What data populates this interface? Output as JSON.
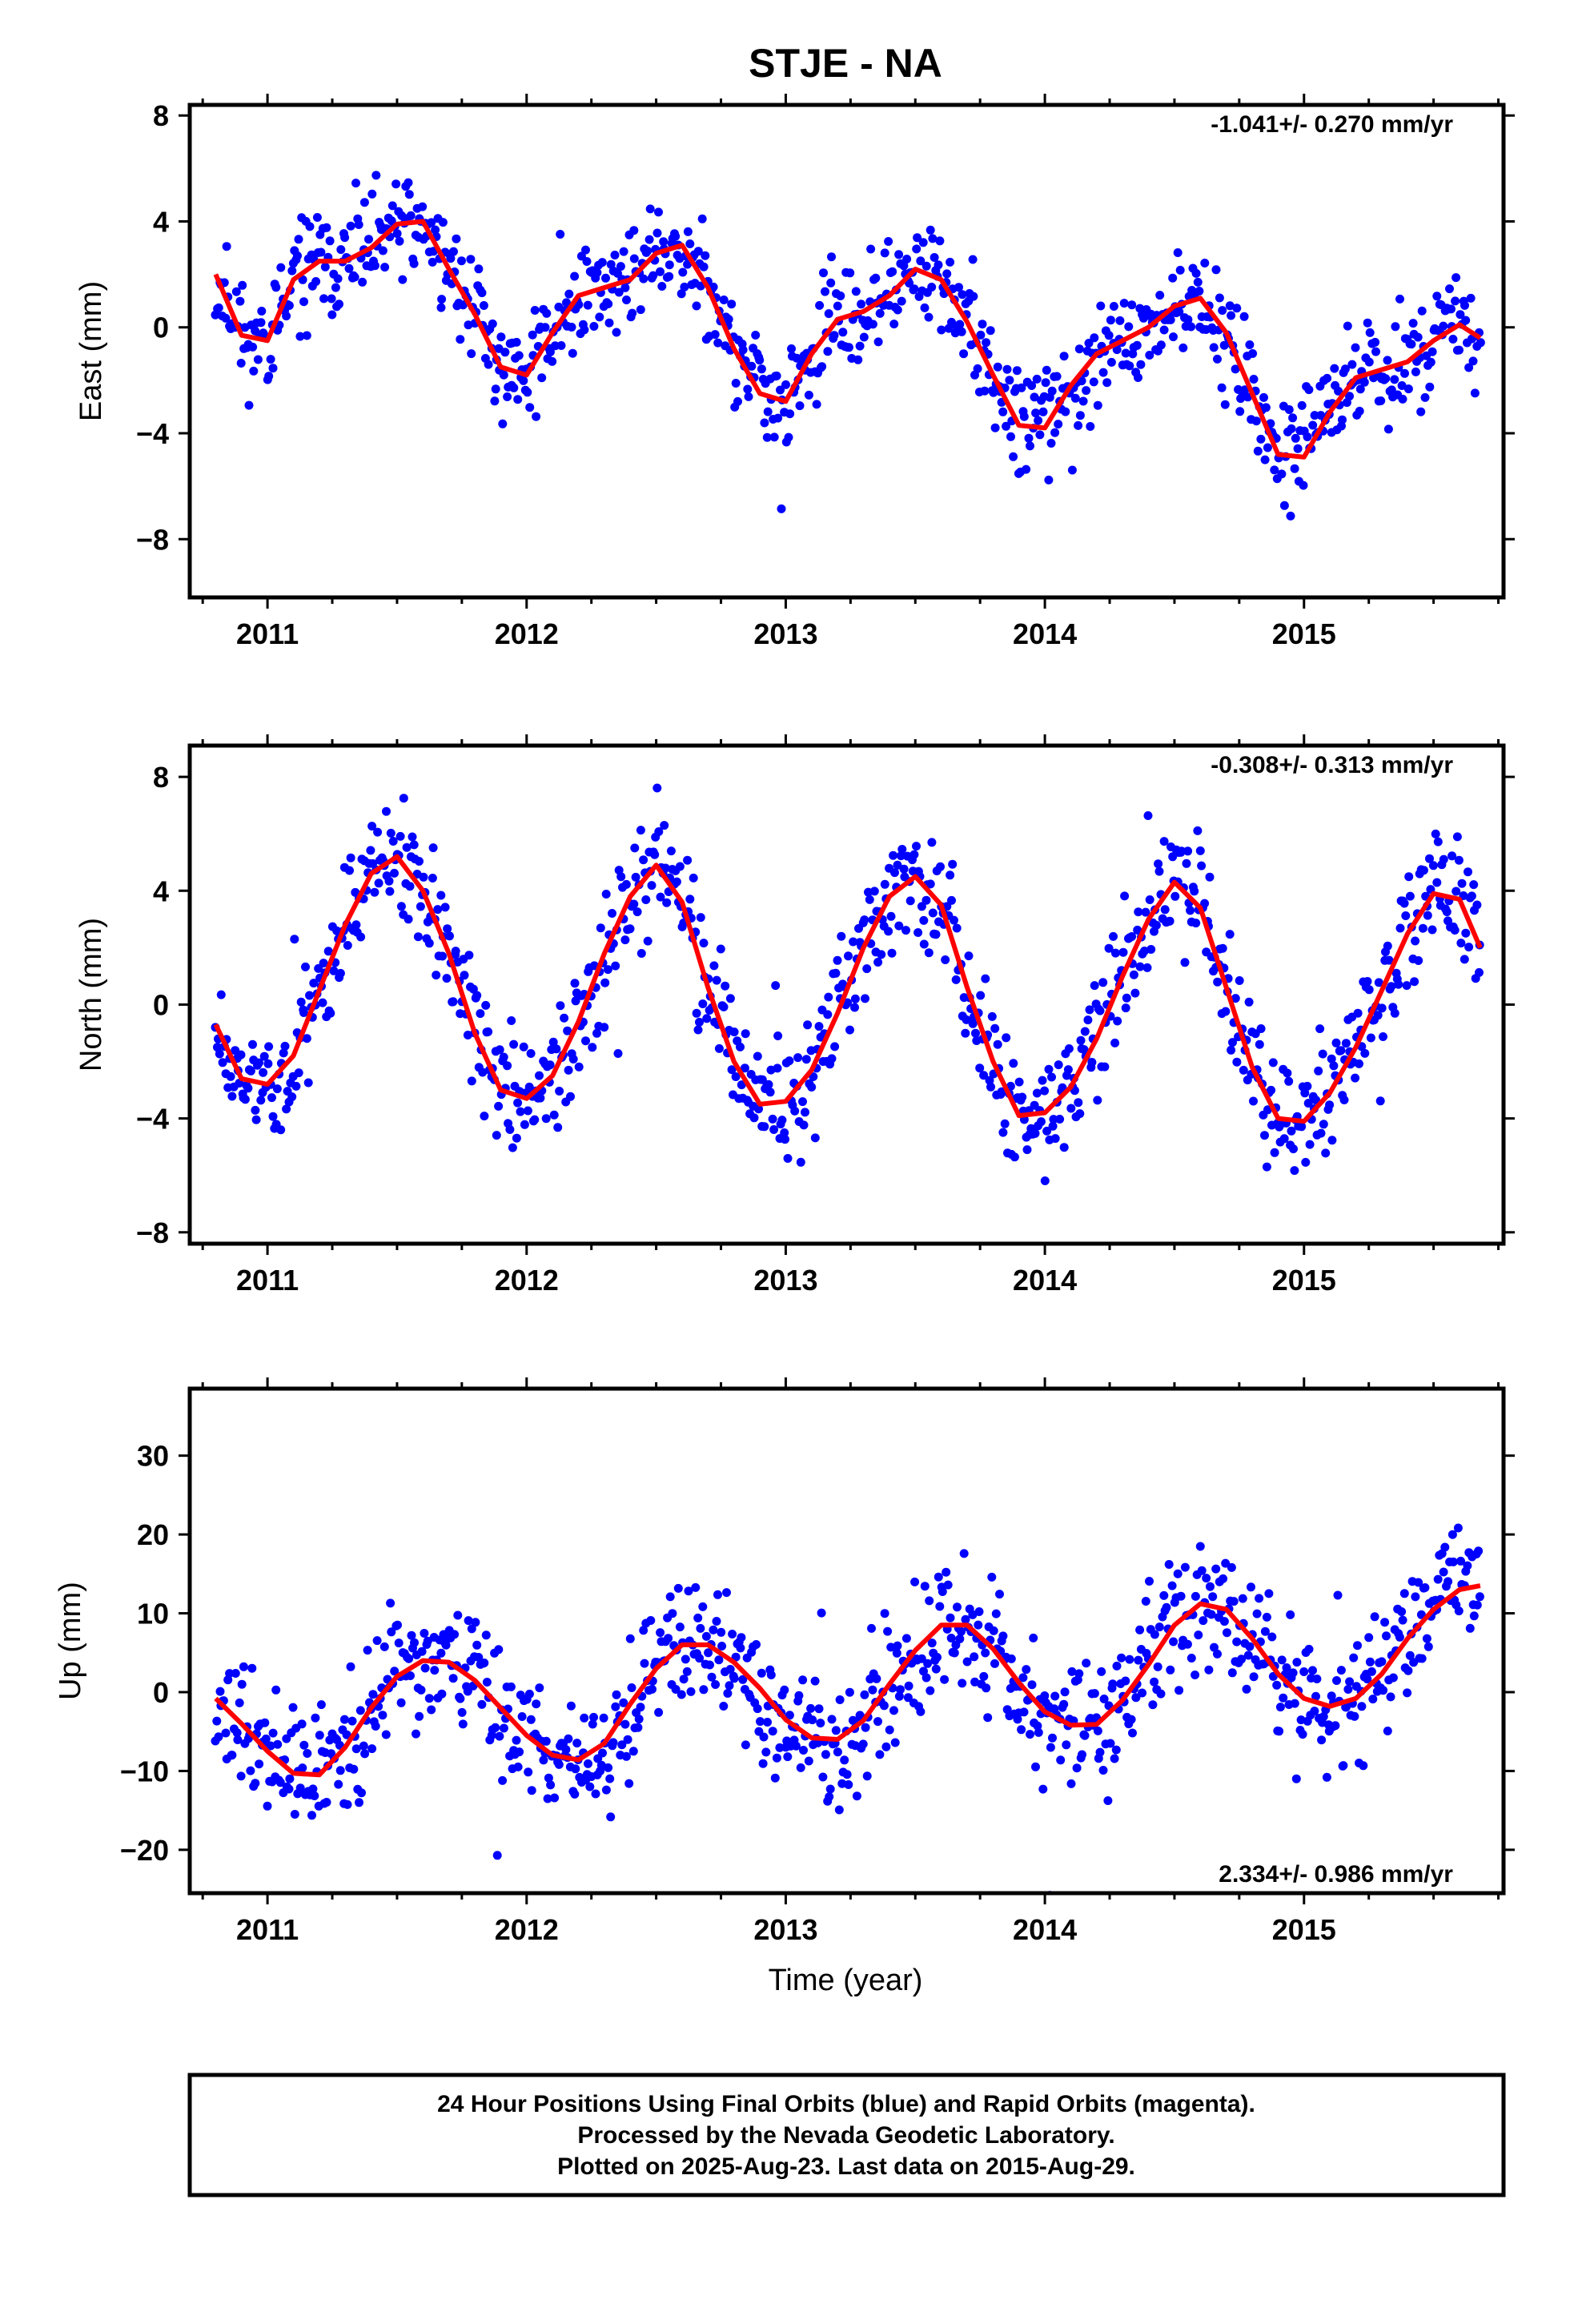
{
  "figure": {
    "title": "STJE - NA",
    "xlabel": "Time (year)",
    "footer_lines": [
      "24 Hour Positions Using Final Orbits (blue) and Rapid Orbits (magenta).",
      "Processed by the Nevada Geodetic Laboratory.",
      "Plotted on 2025-Aug-23. Last data on 2015-Aug-29."
    ]
  },
  "colors": {
    "final_orbits": "#0000ff",
    "model": "#ff0000",
    "frame": "#000000"
  },
  "chart_data": [
    {
      "type": "scatter",
      "component": "East",
      "ylabel": "East (mm)",
      "rate_label": "-1.041+/- 0.270 mm/yr",
      "rate_position": "top-right",
      "xlim": [
        2010.7,
        2015.77
      ],
      "ylim": [
        -10.2,
        8.4
      ],
      "xticks": [
        2011,
        2012,
        2013,
        2014,
        2015
      ],
      "xtick_labels": [
        "2011",
        "2012",
        "2013",
        "2014",
        "2015"
      ],
      "yticks": [
        8,
        4,
        0,
        -4,
        -8
      ],
      "ytick_labels": [
        "8",
        "4",
        "0",
        "−4",
        "−8"
      ],
      "grid": false,
      "model_x": [
        2010.8,
        2010.9,
        2011.0,
        2011.1,
        2011.2,
        2011.3,
        2011.4,
        2011.5,
        2011.6,
        2011.7,
        2011.8,
        2011.9,
        2012.0,
        2012.1,
        2012.2,
        2012.3,
        2012.4,
        2012.5,
        2012.6,
        2012.7,
        2012.8,
        2012.9,
        2013.0,
        2013.1,
        2013.2,
        2013.3,
        2013.4,
        2013.5,
        2013.6,
        2013.7,
        2013.8,
        2013.9,
        2014.0,
        2014.1,
        2014.2,
        2014.3,
        2014.4,
        2014.5,
        2014.6,
        2014.7,
        2014.8,
        2014.9,
        2015.0,
        2015.1,
        2015.2,
        2015.3,
        2015.4,
        2015.5,
        2015.6,
        2015.68
      ],
      "model_y": [
        2.0,
        -0.3,
        -0.5,
        1.8,
        2.5,
        2.5,
        3.0,
        3.9,
        4.0,
        2.2,
        0.5,
        -1.5,
        -1.8,
        -0.2,
        1.2,
        1.5,
        1.8,
        2.8,
        3.1,
        1.5,
        -0.8,
        -2.5,
        -2.8,
        -1.0,
        0.3,
        0.6,
        1.2,
        2.2,
        1.8,
        0.2,
        -1.8,
        -3.7,
        -3.8,
        -2.2,
        -1.0,
        -0.5,
        0.0,
        0.8,
        1.1,
        -0.2,
        -2.5,
        -4.8,
        -4.9,
        -3.2,
        -1.9,
        -1.6,
        -1.3,
        -0.5,
        0.1,
        -0.4
      ],
      "scatter_amp": 1.2,
      "scatter_n": 900,
      "seed": 11
    },
    {
      "type": "scatter",
      "component": "North",
      "ylabel": "North (mm)",
      "rate_label": "-0.308+/- 0.313 mm/yr",
      "rate_position": "top-right",
      "xlim": [
        2010.7,
        2015.77
      ],
      "ylim": [
        -8.4,
        9.1
      ],
      "xticks": [
        2011,
        2012,
        2013,
        2014,
        2015
      ],
      "xtick_labels": [
        "2011",
        "2012",
        "2013",
        "2014",
        "2015"
      ],
      "yticks": [
        8,
        4,
        0,
        -4,
        -8
      ],
      "ytick_labels": [
        "8",
        "4",
        "0",
        "−4",
        "−8"
      ],
      "grid": false,
      "model_x": [
        2010.8,
        2010.9,
        2011.0,
        2011.1,
        2011.2,
        2011.3,
        2011.4,
        2011.5,
        2011.6,
        2011.7,
        2011.8,
        2011.9,
        2012.0,
        2012.1,
        2012.2,
        2012.3,
        2012.4,
        2012.5,
        2012.6,
        2012.7,
        2012.8,
        2012.9,
        2013.0,
        2013.1,
        2013.2,
        2013.3,
        2013.4,
        2013.5,
        2013.6,
        2013.7,
        2013.8,
        2013.9,
        2014.0,
        2014.1,
        2014.2,
        2014.3,
        2014.4,
        2014.5,
        2014.6,
        2014.7,
        2014.8,
        2014.9,
        2015.0,
        2015.1,
        2015.2,
        2015.3,
        2015.4,
        2015.5,
        2015.6,
        2015.68
      ],
      "model_y": [
        -0.7,
        -2.6,
        -2.8,
        -1.8,
        0.5,
        2.8,
        4.6,
        5.2,
        4.0,
        1.8,
        -1.0,
        -3.0,
        -3.3,
        -2.5,
        -0.6,
        1.8,
        3.8,
        4.9,
        3.6,
        0.6,
        -2.0,
        -3.5,
        -3.4,
        -2.3,
        -0.3,
        2.0,
        3.8,
        4.5,
        3.5,
        0.6,
        -2.0,
        -3.9,
        -3.8,
        -2.9,
        -1.2,
        1.0,
        3.0,
        4.3,
        3.4,
        0.6,
        -2.2,
        -4.0,
        -4.1,
        -3.1,
        -1.5,
        0.5,
        2.5,
        3.9,
        3.7,
        2.0
      ],
      "scatter_amp": 1.3,
      "scatter_n": 900,
      "seed": 23
    },
    {
      "type": "scatter",
      "component": "Up",
      "ylabel": "Up (mm)",
      "rate_label": "2.334+/- 0.986 mm/yr",
      "rate_position": "bottom-right",
      "xlim": [
        2010.7,
        2015.77
      ],
      "ylim": [
        -25.5,
        38.5
      ],
      "xticks": [
        2011,
        2012,
        2013,
        2014,
        2015
      ],
      "xtick_labels": [
        "2011",
        "2012",
        "2013",
        "2014",
        "2015"
      ],
      "yticks": [
        30,
        20,
        10,
        0,
        -10,
        -20
      ],
      "ytick_labels": [
        "30",
        "20",
        "10",
        "0",
        "−10",
        "−20"
      ],
      "grid": false,
      "model_x": [
        2010.8,
        2010.9,
        2011.0,
        2011.1,
        2011.2,
        2011.3,
        2011.4,
        2011.5,
        2011.6,
        2011.7,
        2011.8,
        2011.9,
        2012.0,
        2012.1,
        2012.2,
        2012.3,
        2012.4,
        2012.5,
        2012.6,
        2012.7,
        2012.8,
        2012.9,
        2013.0,
        2013.1,
        2013.2,
        2013.3,
        2013.4,
        2013.5,
        2013.6,
        2013.7,
        2013.8,
        2013.9,
        2014.0,
        2014.1,
        2014.2,
        2014.3,
        2014.4,
        2014.5,
        2014.6,
        2014.7,
        2014.8,
        2014.9,
        2015.0,
        2015.1,
        2015.2,
        2015.3,
        2015.4,
        2015.5,
        2015.6,
        2015.68
      ],
      "model_y": [
        -0.8,
        -4.0,
        -7.5,
        -10.3,
        -10.5,
        -7.0,
        -2.0,
        2.0,
        4.0,
        3.8,
        1.5,
        -2.0,
        -5.5,
        -8.0,
        -8.6,
        -6.5,
        -1.5,
        3.0,
        6.0,
        6.0,
        3.8,
        0.5,
        -3.5,
        -5.8,
        -6.0,
        -3.6,
        1.0,
        5.3,
        8.5,
        8.5,
        5.5,
        1.2,
        -2.5,
        -4.2,
        -4.1,
        -1.0,
        3.5,
        8.5,
        11.2,
        10.5,
        6.8,
        2.3,
        -0.8,
        -1.8,
        -0.8,
        2.3,
        6.8,
        10.5,
        13.0,
        13.5
      ],
      "scatter_amp": 5.0,
      "scatter_n": 900,
      "seed": 37
    }
  ]
}
